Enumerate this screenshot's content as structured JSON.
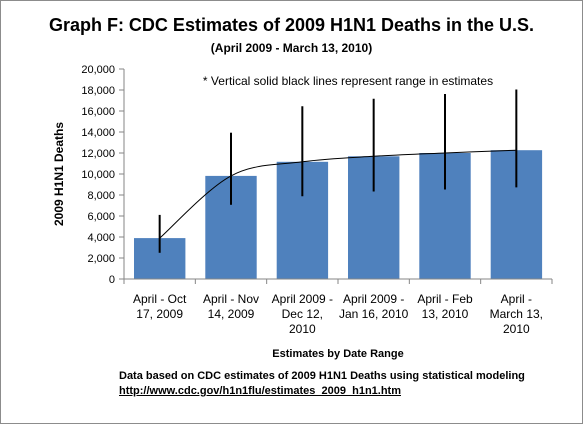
{
  "chart_data": {
    "type": "bar",
    "title": "Graph F: CDC Estimates of 2009 H1N1 Deaths in the U.S.",
    "subtitle": "(April 2009 - March 13, 2010)",
    "annotation": "* Vertical solid black lines represent range in estimates",
    "xlabel": "Estimates by Date Range",
    "ylabel": "2009 H1N1 Deaths",
    "ylim": [
      0,
      20000
    ],
    "yticks": [
      "0",
      "2,000",
      "4,000",
      "6,000",
      "8,000",
      "10,000",
      "12,000",
      "14,000",
      "16,000",
      "18,000",
      "20,000"
    ],
    "categories": [
      [
        "April - Oct",
        "17, 2009"
      ],
      [
        "April - Nov",
        "14, 2009"
      ],
      [
        "April 2009 -",
        "Dec 12,",
        "2010"
      ],
      [
        "April 2009 -",
        "Jan 16, 2010"
      ],
      [
        "April - Feb",
        "13, 2010"
      ],
      [
        "April -",
        "March 13,",
        "2010"
      ]
    ],
    "values": [
      3900,
      9820,
      11160,
      11690,
      12000,
      12270
    ],
    "range_low": [
      2500,
      7070,
      7880,
      8330,
      8520,
      8720
    ],
    "range_high": [
      6100,
      13930,
      16460,
      17160,
      17620,
      18050
    ],
    "trendline": true,
    "bar_color": "#4f81bd",
    "grid": false,
    "legend": "none"
  },
  "footnote": {
    "text": "Data based on CDC estimates of 2009 H1N1 Deaths using statistical modeling",
    "link": "http://www.cdc.gov/h1n1flu/estimates_2009_h1n1.htm"
  }
}
